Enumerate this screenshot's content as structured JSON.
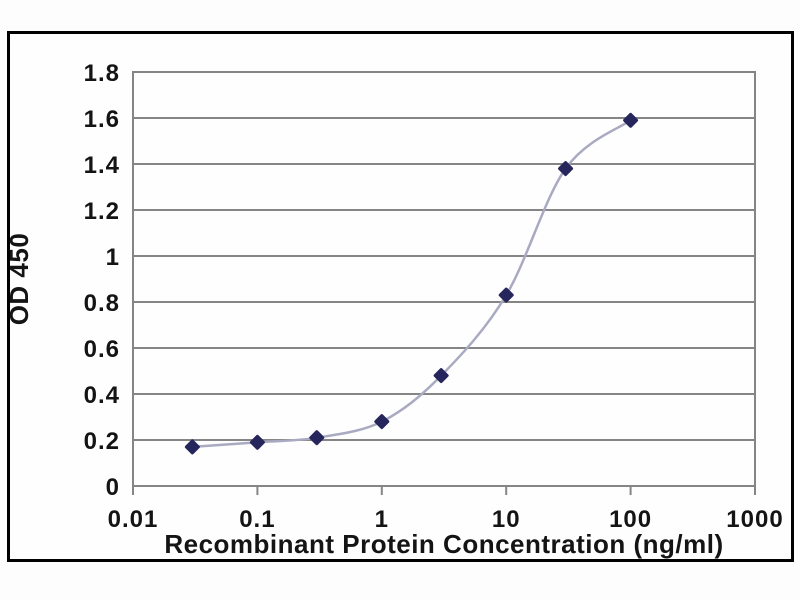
{
  "chart_data": {
    "type": "line",
    "title": "",
    "xlabel": "Recombinant Protein Concentration (ng/ml)",
    "ylabel": "OD 450",
    "x_scale": "log",
    "xlim": [
      0.01,
      1000
    ],
    "ylim": [
      0,
      1.8
    ],
    "x": [
      0.03,
      0.1,
      0.3,
      1,
      3,
      10,
      30,
      100
    ],
    "y": [
      0.17,
      0.19,
      0.21,
      0.28,
      0.48,
      0.83,
      1.38,
      1.59
    ],
    "x_ticks": [
      0.01,
      0.1,
      1,
      10,
      100,
      1000
    ],
    "x_tick_labels": [
      "0.01",
      "0.1",
      "1",
      "10",
      "100",
      "1000"
    ],
    "y_tick_step": 0.2,
    "y_tick_labels": [
      "0",
      "0.2",
      "0.4",
      "0.6",
      "0.8",
      "1",
      "1.2",
      "1.4",
      "1.6",
      "1.8"
    ],
    "grid": "horizontal",
    "legend": "none",
    "marker": "diamond",
    "smooth": true,
    "colors": {
      "line": "#a9aac2",
      "marker": "#26265c",
      "grid": "#858585",
      "text": "#141414",
      "frame_border": "#000000",
      "background": "#fefefe"
    }
  }
}
